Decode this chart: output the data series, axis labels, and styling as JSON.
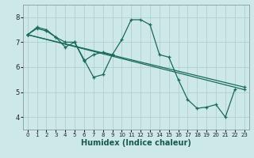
{
  "xlabel": "Humidex (Indice chaleur)",
  "xlim": [
    -0.5,
    23.5
  ],
  "ylim": [
    3.5,
    8.5
  ],
  "yticks": [
    4,
    5,
    6,
    7,
    8
  ],
  "xticks": [
    0,
    1,
    2,
    3,
    4,
    5,
    6,
    7,
    8,
    9,
    10,
    11,
    12,
    13,
    14,
    15,
    16,
    17,
    18,
    19,
    20,
    21,
    22,
    23
  ],
  "bg_color": "#cce8e8",
  "grid_color": "#b0d0d0",
  "line_color": "#1a6b5a",
  "line1": [
    7.3,
    7.6,
    7.5,
    7.2,
    6.8,
    7.0,
    6.3,
    5.6,
    5.7,
    6.5,
    7.1,
    7.9,
    7.9,
    7.7,
    6.5,
    6.4,
    5.5,
    4.7,
    4.35,
    4.4,
    4.5,
    4.0,
    5.1,
    null
  ],
  "line2": [
    7.3,
    7.55,
    7.45,
    7.2,
    7.0,
    7.0,
    6.25,
    6.5,
    6.6,
    6.5,
    null,
    null,
    null,
    null,
    null,
    null,
    null,
    null,
    null,
    null,
    null,
    null,
    null,
    null
  ],
  "line3_x": [
    0,
    23
  ],
  "line3_y": [
    7.3,
    5.1
  ],
  "line4_x": [
    0,
    23
  ],
  "line4_y": [
    7.3,
    5.2
  ]
}
